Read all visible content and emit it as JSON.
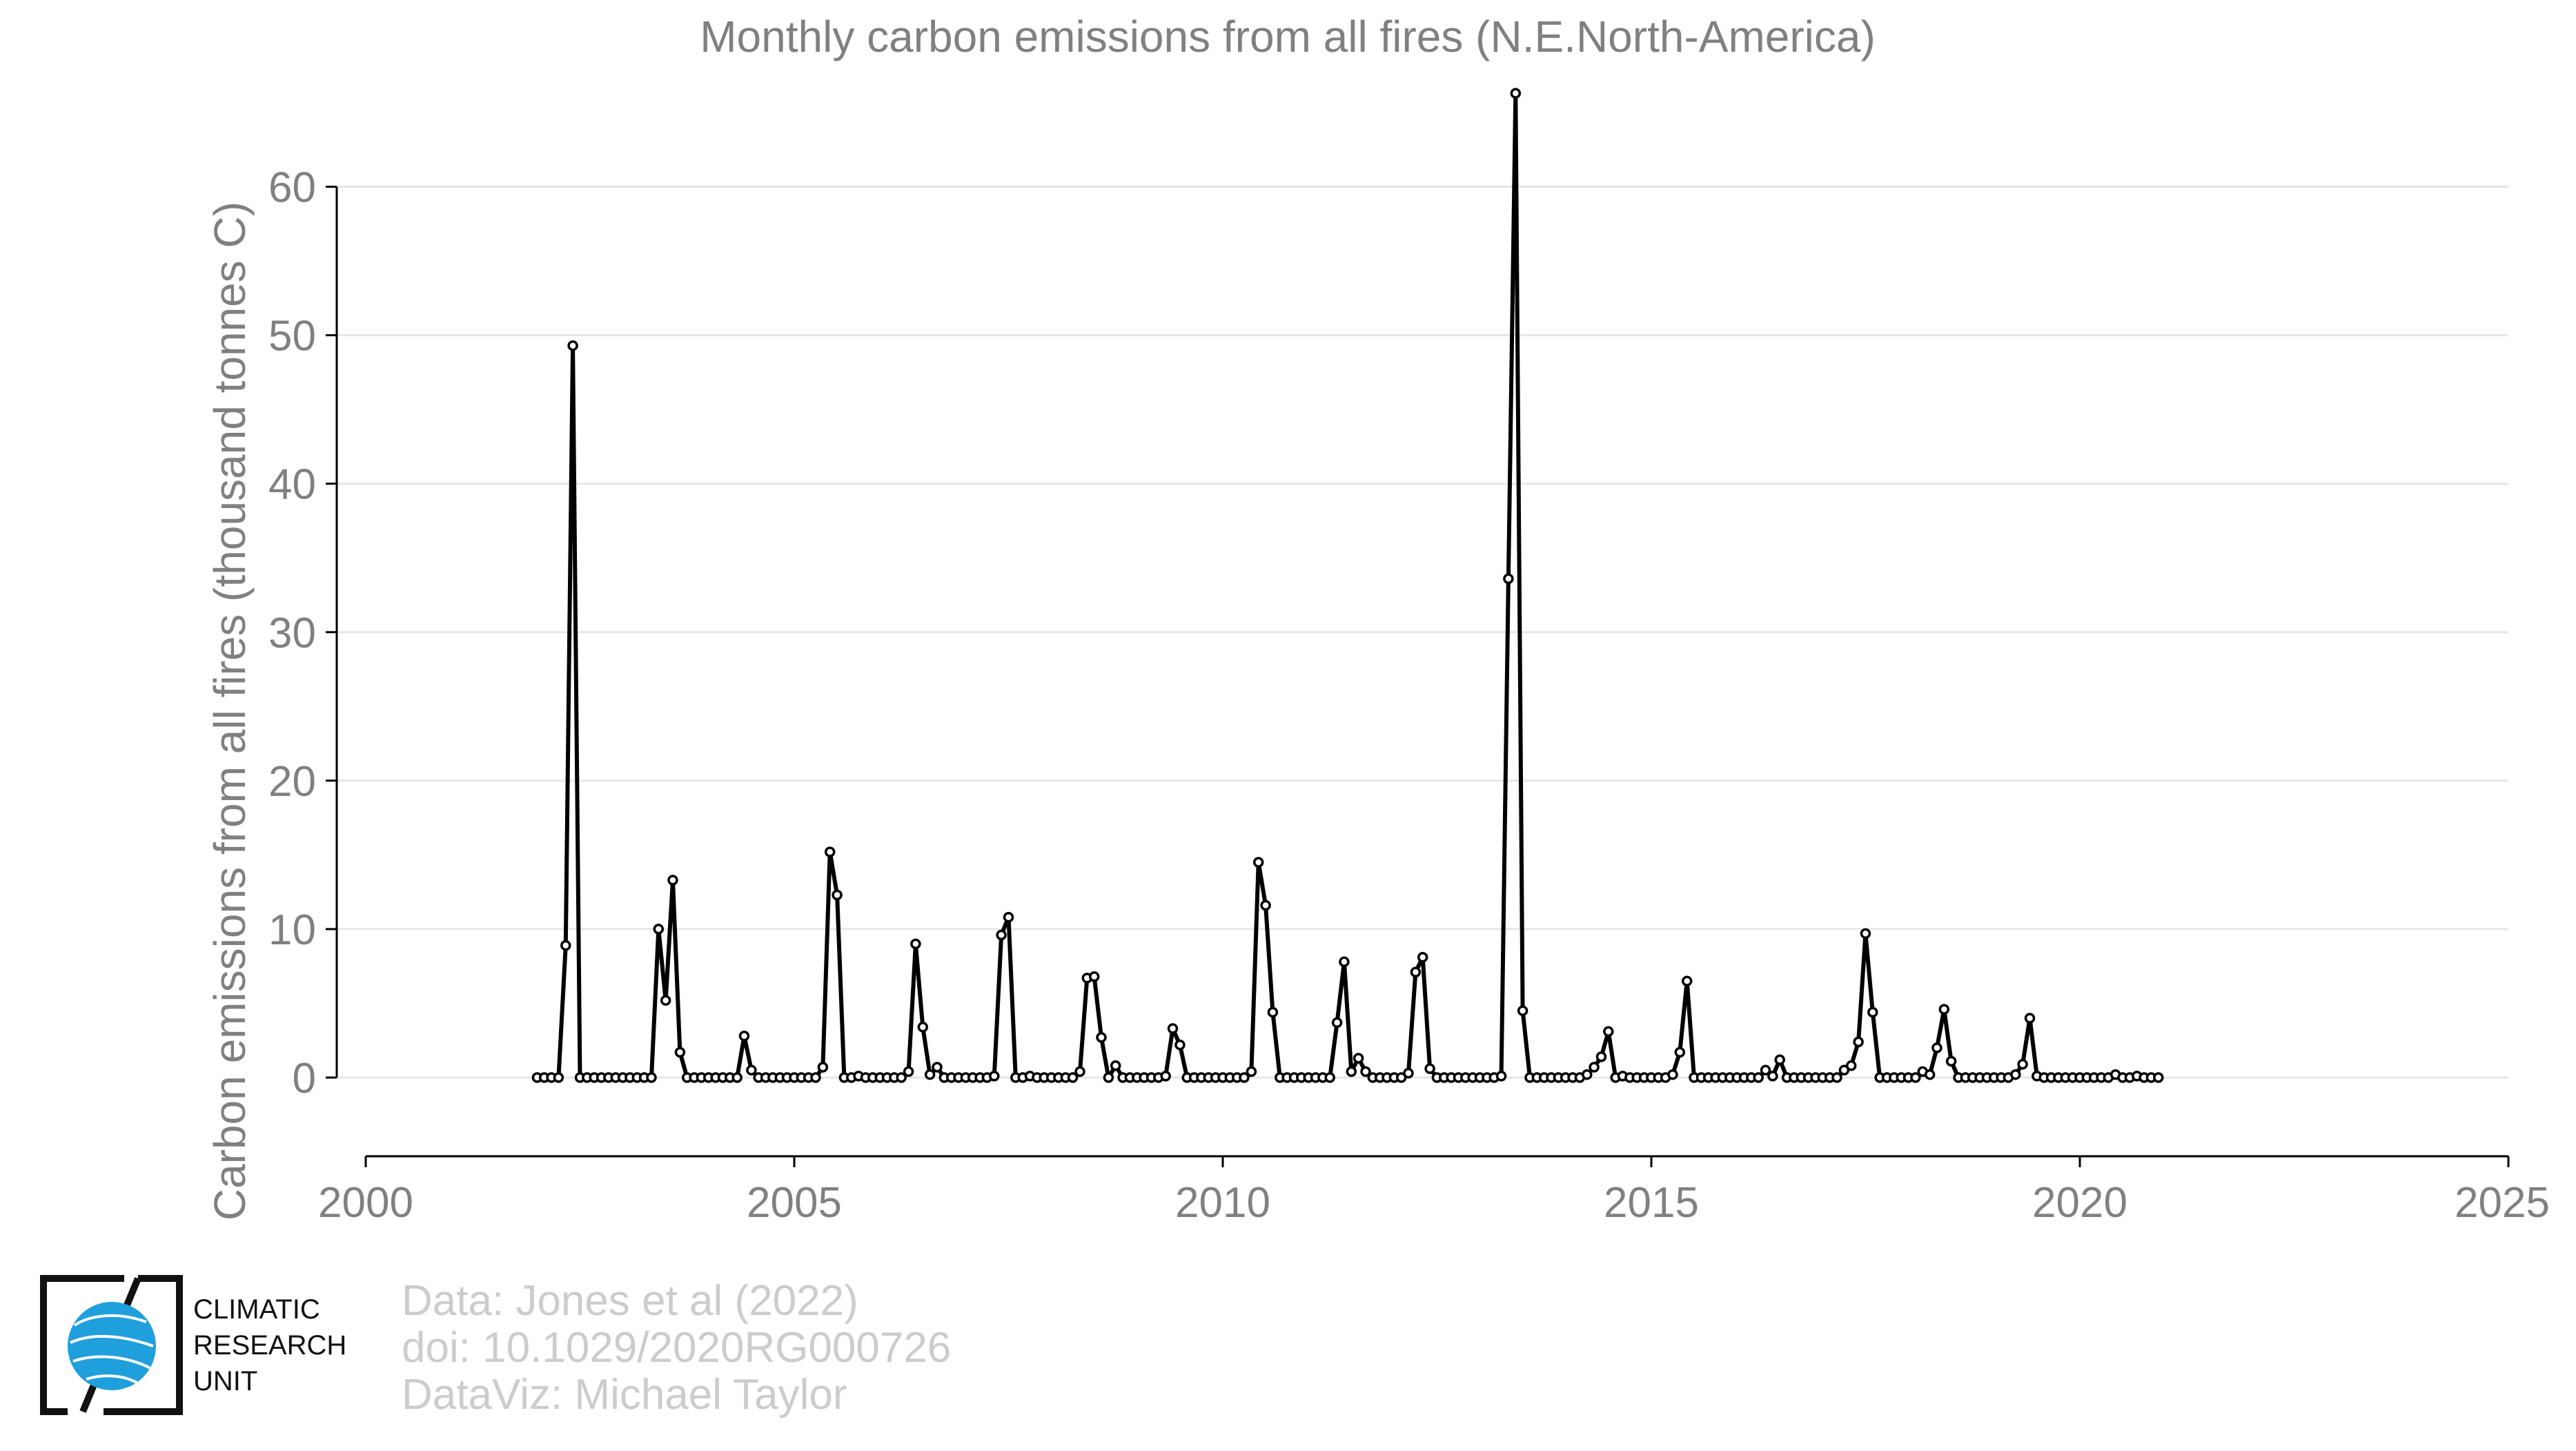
{
  "chart_data": {
    "type": "line",
    "title": "Monthly carbon emissions from all fires (N.E.North-America)",
    "xlabel": "",
    "ylabel": "Carbon emissions from all fires (thousand tonnes C)",
    "xlim": [
      2000,
      2025
    ],
    "ylim": [
      -5.3,
      67
    ],
    "xticks": [
      2000,
      2005,
      2010,
      2015,
      2020,
      2025
    ],
    "yticks": [
      0,
      10,
      20,
      30,
      40,
      50,
      60
    ],
    "grid": "horizontal",
    "legend": "none",
    "colors": {
      "line": "#000000",
      "marker_fill": "#ffffff",
      "grid": "#e6e6e6",
      "axis": "#000000",
      "text": "#808080",
      "credit": "#cccccc",
      "logo_globe": "#1f9fdc"
    },
    "series": [
      {
        "x_start": 2002.0,
        "x_step": 0.08333,
        "values": [
          0,
          0,
          0,
          0,
          8.9,
          49.3,
          0,
          0,
          0,
          0,
          0,
          0,
          0,
          0,
          0,
          0,
          0,
          10.0,
          5.2,
          13.3,
          1.7,
          0,
          0,
          0,
          0,
          0,
          0,
          0,
          0,
          2.8,
          0.5,
          0,
          0,
          0,
          0,
          0,
          0,
          0,
          0,
          0,
          0.7,
          15.2,
          12.3,
          0,
          0,
          0.1,
          0,
          0,
          0,
          0,
          0,
          0,
          0.4,
          9.0,
          3.4,
          0.2,
          0.7,
          0,
          0,
          0,
          0,
          0,
          0,
          0,
          0.1,
          9.6,
          10.8,
          0,
          0,
          0.1,
          0,
          0,
          0,
          0,
          0,
          0,
          0.4,
          6.7,
          6.8,
          2.7,
          0,
          0.8,
          0,
          0,
          0,
          0,
          0,
          0,
          0.1,
          3.3,
          2.2,
          0,
          0,
          0,
          0,
          0,
          0,
          0,
          0,
          0,
          0.4,
          14.5,
          11.6,
          4.4,
          0,
          0,
          0,
          0,
          0,
          0,
          0,
          0,
          3.7,
          7.8,
          0.4,
          1.3,
          0.4,
          0,
          0,
          0,
          0,
          0,
          0.3,
          7.1,
          8.1,
          0.6,
          0,
          0,
          0,
          0,
          0,
          0,
          0,
          0,
          0,
          0.1,
          33.6,
          66.3,
          4.5,
          0,
          0,
          0,
          0,
          0,
          0,
          0,
          0,
          0.2,
          0.7,
          1.4,
          3.1,
          0,
          0.1,
          0,
          0,
          0,
          0,
          0,
          0,
          0.2,
          1.7,
          6.5,
          0,
          0,
          0,
          0,
          0,
          0,
          0,
          0,
          0,
          0,
          0.5,
          0.1,
          1.2,
          0,
          0,
          0,
          0,
          0,
          0,
          0,
          0,
          0.5,
          0.8,
          2.4,
          9.7,
          4.4,
          0,
          0,
          0,
          0,
          0,
          0,
          0.4,
          0.2,
          2.0,
          4.6,
          1.1,
          0,
          0,
          0,
          0,
          0,
          0,
          0,
          0,
          0.2,
          0.9,
          4.0,
          0.1,
          0,
          0,
          0,
          0,
          0,
          0,
          0,
          0,
          0,
          0,
          0.2,
          0,
          0,
          0.1,
          0,
          0,
          0
        ]
      }
    ],
    "credits": [
      "Data: Jones et al (2022)",
      "doi: 10.1029/2020RG000726",
      "DataViz: Michael Taylor"
    ],
    "logo_lines": [
      "CLIMATIC",
      "RESEARCH",
      "UNIT"
    ]
  }
}
